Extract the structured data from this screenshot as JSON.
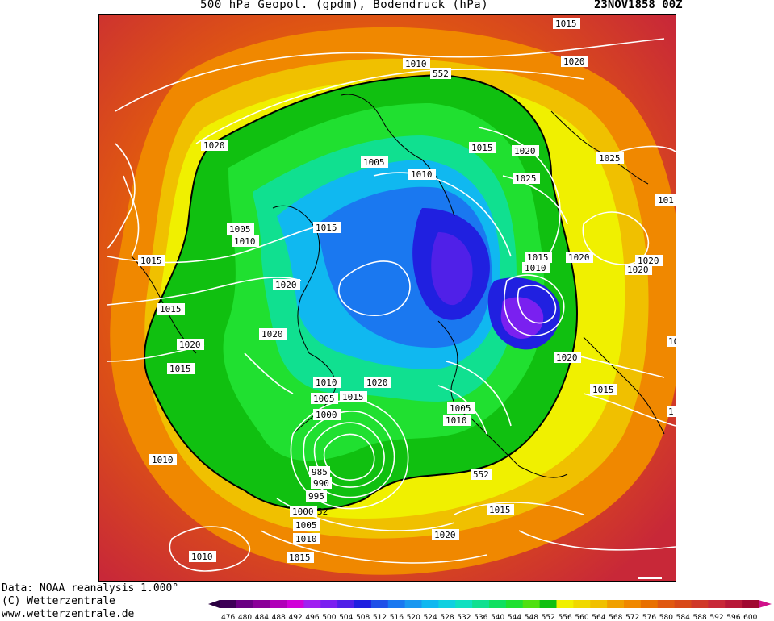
{
  "header": {
    "title": "500 hPa Geopot. (gpdm), Bodendruck (hPa)",
    "date": "23NOV1858 00Z"
  },
  "credits": {
    "line1": "Data: NOAA reanalysis 1.000°",
    "line2": "(C) Wetterzentrale",
    "line3": "www.wetterzentrale.de"
  },
  "legend": {
    "values": [
      "476",
      "480",
      "484",
      "488",
      "492",
      "496",
      "500",
      "504",
      "508",
      "512",
      "516",
      "520",
      "524",
      "528",
      "532",
      "536",
      "540",
      "544",
      "548",
      "552",
      "556",
      "560",
      "564",
      "568",
      "572",
      "576",
      "580",
      "584",
      "588",
      "592",
      "596",
      "600"
    ],
    "colors": [
      "#3e0057",
      "#6a0083",
      "#8a0099",
      "#b000b8",
      "#d000d8",
      "#a020f0",
      "#7a20f0",
      "#5020e8",
      "#2020e0",
      "#2050e8",
      "#1a78f0",
      "#1a98f0",
      "#10b8f0",
      "#10d0e0",
      "#10e0c0",
      "#10e090",
      "#10e060",
      "#20e030",
      "#50e010",
      "#10c010",
      "#f0f000",
      "#f0d800",
      "#f0c000",
      "#f0a000",
      "#f08800",
      "#e87000",
      "#e05810",
      "#d84818",
      "#d03828",
      "#c82838",
      "#b81838",
      "#a00830"
    ],
    "end_color": "#d0108a"
  },
  "map": {
    "contour_labels": [
      {
        "text": "1015"
      },
      {
        "text": "1010"
      },
      {
        "text": "552"
      },
      {
        "text": "1020"
      },
      {
        "text": "1020"
      },
      {
        "text": "1015"
      },
      {
        "text": "1020"
      },
      {
        "text": "1005"
      },
      {
        "text": "1010"
      },
      {
        "text": "1025"
      },
      {
        "text": "1025"
      },
      {
        "text": "101"
      },
      {
        "text": "1005"
      },
      {
        "text": "1010"
      },
      {
        "text": "1015"
      },
      {
        "text": "1015"
      },
      {
        "text": "1015"
      },
      {
        "text": "1010"
      },
      {
        "text": "1020"
      },
      {
        "text": "1020"
      },
      {
        "text": "1020"
      },
      {
        "text": "1015"
      },
      {
        "text": "1020"
      },
      {
        "text": "1020"
      },
      {
        "text": "1020"
      },
      {
        "text": "1020"
      },
      {
        "text": "102"
      },
      {
        "text": "1015"
      },
      {
        "text": "1010"
      },
      {
        "text": "1020"
      },
      {
        "text": "1005"
      },
      {
        "text": "1015"
      },
      {
        "text": "1015"
      },
      {
        "text": "1000"
      },
      {
        "text": "1005"
      },
      {
        "text": "1010"
      },
      {
        "text": "1"
      },
      {
        "text": "1010"
      },
      {
        "text": "985"
      },
      {
        "text": "990"
      },
      {
        "text": "995"
      },
      {
        "text": "552"
      },
      {
        "text": "1000"
      },
      {
        "text": "52"
      },
      {
        "text": "1015"
      },
      {
        "text": "1005"
      },
      {
        "text": "1010"
      },
      {
        "text": "1020"
      },
      {
        "text": "1010"
      },
      {
        "text": "1015"
      }
    ]
  }
}
